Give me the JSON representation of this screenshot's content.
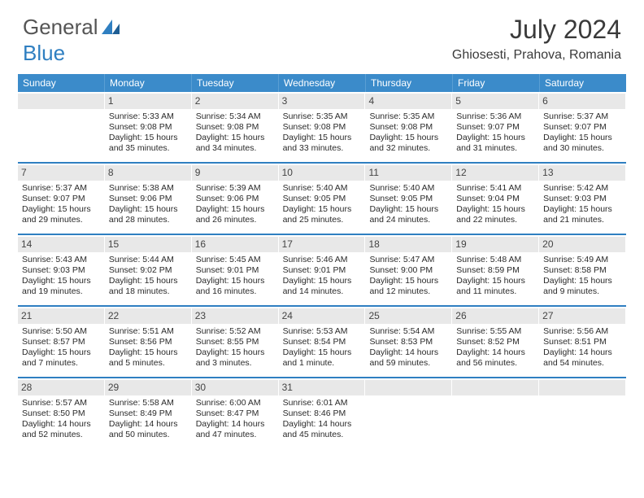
{
  "logo": {
    "word1": "General",
    "word2": "Blue"
  },
  "title": "July 2024",
  "location": "Ghiosesti, Prahova, Romania",
  "colors": {
    "header_bg": "#3b8bca",
    "accent": "#2f7fc1",
    "daynum_bg": "#e8e8e8",
    "text": "#2a2a2a"
  },
  "weekdays": [
    "Sunday",
    "Monday",
    "Tuesday",
    "Wednesday",
    "Thursday",
    "Friday",
    "Saturday"
  ],
  "weeks": [
    [
      {
        "n": "",
        "sr": "",
        "ss": "",
        "dl": ""
      },
      {
        "n": "1",
        "sr": "Sunrise: 5:33 AM",
        "ss": "Sunset: 9:08 PM",
        "dl": "Daylight: 15 hours and 35 minutes."
      },
      {
        "n": "2",
        "sr": "Sunrise: 5:34 AM",
        "ss": "Sunset: 9:08 PM",
        "dl": "Daylight: 15 hours and 34 minutes."
      },
      {
        "n": "3",
        "sr": "Sunrise: 5:35 AM",
        "ss": "Sunset: 9:08 PM",
        "dl": "Daylight: 15 hours and 33 minutes."
      },
      {
        "n": "4",
        "sr": "Sunrise: 5:35 AM",
        "ss": "Sunset: 9:08 PM",
        "dl": "Daylight: 15 hours and 32 minutes."
      },
      {
        "n": "5",
        "sr": "Sunrise: 5:36 AM",
        "ss": "Sunset: 9:07 PM",
        "dl": "Daylight: 15 hours and 31 minutes."
      },
      {
        "n": "6",
        "sr": "Sunrise: 5:37 AM",
        "ss": "Sunset: 9:07 PM",
        "dl": "Daylight: 15 hours and 30 minutes."
      }
    ],
    [
      {
        "n": "7",
        "sr": "Sunrise: 5:37 AM",
        "ss": "Sunset: 9:07 PM",
        "dl": "Daylight: 15 hours and 29 minutes."
      },
      {
        "n": "8",
        "sr": "Sunrise: 5:38 AM",
        "ss": "Sunset: 9:06 PM",
        "dl": "Daylight: 15 hours and 28 minutes."
      },
      {
        "n": "9",
        "sr": "Sunrise: 5:39 AM",
        "ss": "Sunset: 9:06 PM",
        "dl": "Daylight: 15 hours and 26 minutes."
      },
      {
        "n": "10",
        "sr": "Sunrise: 5:40 AM",
        "ss": "Sunset: 9:05 PM",
        "dl": "Daylight: 15 hours and 25 minutes."
      },
      {
        "n": "11",
        "sr": "Sunrise: 5:40 AM",
        "ss": "Sunset: 9:05 PM",
        "dl": "Daylight: 15 hours and 24 minutes."
      },
      {
        "n": "12",
        "sr": "Sunrise: 5:41 AM",
        "ss": "Sunset: 9:04 PM",
        "dl": "Daylight: 15 hours and 22 minutes."
      },
      {
        "n": "13",
        "sr": "Sunrise: 5:42 AM",
        "ss": "Sunset: 9:03 PM",
        "dl": "Daylight: 15 hours and 21 minutes."
      }
    ],
    [
      {
        "n": "14",
        "sr": "Sunrise: 5:43 AM",
        "ss": "Sunset: 9:03 PM",
        "dl": "Daylight: 15 hours and 19 minutes."
      },
      {
        "n": "15",
        "sr": "Sunrise: 5:44 AM",
        "ss": "Sunset: 9:02 PM",
        "dl": "Daylight: 15 hours and 18 minutes."
      },
      {
        "n": "16",
        "sr": "Sunrise: 5:45 AM",
        "ss": "Sunset: 9:01 PM",
        "dl": "Daylight: 15 hours and 16 minutes."
      },
      {
        "n": "17",
        "sr": "Sunrise: 5:46 AM",
        "ss": "Sunset: 9:01 PM",
        "dl": "Daylight: 15 hours and 14 minutes."
      },
      {
        "n": "18",
        "sr": "Sunrise: 5:47 AM",
        "ss": "Sunset: 9:00 PM",
        "dl": "Daylight: 15 hours and 12 minutes."
      },
      {
        "n": "19",
        "sr": "Sunrise: 5:48 AM",
        "ss": "Sunset: 8:59 PM",
        "dl": "Daylight: 15 hours and 11 minutes."
      },
      {
        "n": "20",
        "sr": "Sunrise: 5:49 AM",
        "ss": "Sunset: 8:58 PM",
        "dl": "Daylight: 15 hours and 9 minutes."
      }
    ],
    [
      {
        "n": "21",
        "sr": "Sunrise: 5:50 AM",
        "ss": "Sunset: 8:57 PM",
        "dl": "Daylight: 15 hours and 7 minutes."
      },
      {
        "n": "22",
        "sr": "Sunrise: 5:51 AM",
        "ss": "Sunset: 8:56 PM",
        "dl": "Daylight: 15 hours and 5 minutes."
      },
      {
        "n": "23",
        "sr": "Sunrise: 5:52 AM",
        "ss": "Sunset: 8:55 PM",
        "dl": "Daylight: 15 hours and 3 minutes."
      },
      {
        "n": "24",
        "sr": "Sunrise: 5:53 AM",
        "ss": "Sunset: 8:54 PM",
        "dl": "Daylight: 15 hours and 1 minute."
      },
      {
        "n": "25",
        "sr": "Sunrise: 5:54 AM",
        "ss": "Sunset: 8:53 PM",
        "dl": "Daylight: 14 hours and 59 minutes."
      },
      {
        "n": "26",
        "sr": "Sunrise: 5:55 AM",
        "ss": "Sunset: 8:52 PM",
        "dl": "Daylight: 14 hours and 56 minutes."
      },
      {
        "n": "27",
        "sr": "Sunrise: 5:56 AM",
        "ss": "Sunset: 8:51 PM",
        "dl": "Daylight: 14 hours and 54 minutes."
      }
    ],
    [
      {
        "n": "28",
        "sr": "Sunrise: 5:57 AM",
        "ss": "Sunset: 8:50 PM",
        "dl": "Daylight: 14 hours and 52 minutes."
      },
      {
        "n": "29",
        "sr": "Sunrise: 5:58 AM",
        "ss": "Sunset: 8:49 PM",
        "dl": "Daylight: 14 hours and 50 minutes."
      },
      {
        "n": "30",
        "sr": "Sunrise: 6:00 AM",
        "ss": "Sunset: 8:47 PM",
        "dl": "Daylight: 14 hours and 47 minutes."
      },
      {
        "n": "31",
        "sr": "Sunrise: 6:01 AM",
        "ss": "Sunset: 8:46 PM",
        "dl": "Daylight: 14 hours and 45 minutes."
      },
      {
        "n": "",
        "sr": "",
        "ss": "",
        "dl": ""
      },
      {
        "n": "",
        "sr": "",
        "ss": "",
        "dl": ""
      },
      {
        "n": "",
        "sr": "",
        "ss": "",
        "dl": ""
      }
    ]
  ]
}
